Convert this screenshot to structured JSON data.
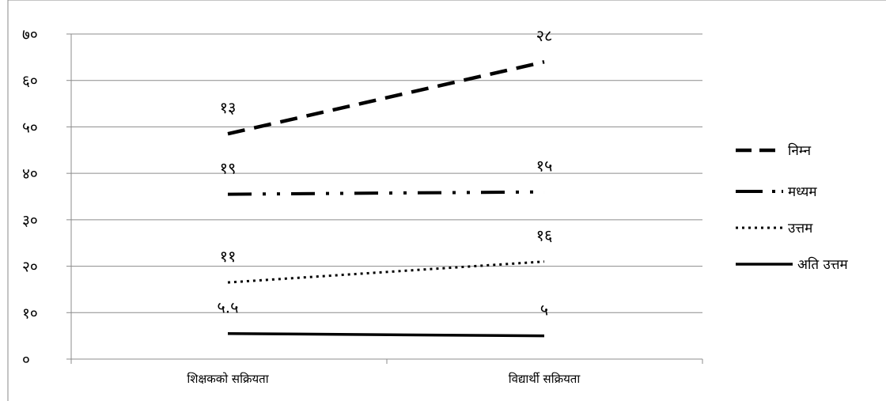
{
  "chart_data": {
    "type": "line",
    "categories": [
      "शिक्षकको सक्रियता",
      "विद्यार्थी सक्रियता"
    ],
    "y_ticks": [
      "०",
      "१०",
      "२०",
      "३०",
      "४०",
      "५०",
      "६०",
      "७०"
    ],
    "ylim": [
      0,
      70
    ],
    "y_tick_step": 10,
    "grid": true,
    "legend_position": "right",
    "series": [
      {
        "name": "निम्न",
        "values": [
          48.5,
          64
        ],
        "labels": [
          "१३",
          "२८"
        ],
        "style": "dashed"
      },
      {
        "name": "मध्यम",
        "values": [
          35.5,
          36
        ],
        "labels": [
          "१९",
          "१५"
        ],
        "style": "long-dash-dot-dot"
      },
      {
        "name": "उत्तम",
        "values": [
          16.5,
          21
        ],
        "labels": [
          "११",
          "१६"
        ],
        "style": "dotted"
      },
      {
        "name": "अति उत्तम",
        "values": [
          5.5,
          5
        ],
        "labels": [
          "५.५",
          "५"
        ],
        "style": "solid"
      }
    ]
  }
}
